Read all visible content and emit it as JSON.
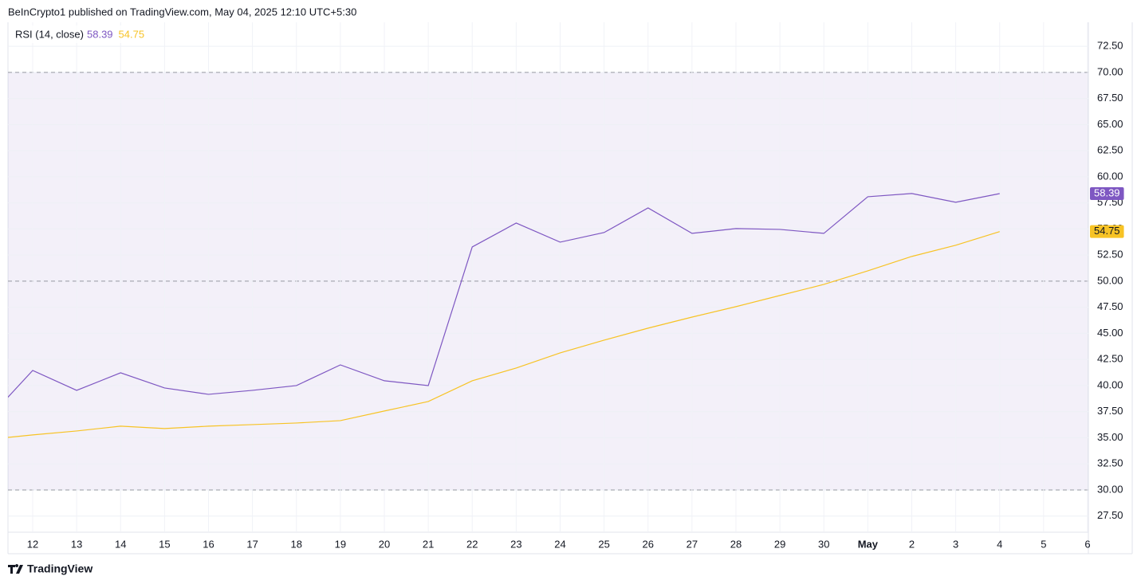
{
  "header": {
    "text": "BeInCrypto1 published on TradingView.com, May 04, 2025 12:10 UTC+5:30"
  },
  "footer": {
    "brand": "TradingView"
  },
  "chart_data": {
    "type": "line",
    "indicator": "RSI (14, close)",
    "categories": [
      null,
      "12",
      "13",
      "14",
      "15",
      "16",
      "17",
      "18",
      "19",
      "20",
      "21",
      "22",
      "23",
      "24",
      "25",
      "26",
      "27",
      "28",
      "29",
      "30",
      "May",
      "2",
      "3",
      "4",
      "5",
      "6"
    ],
    "series": [
      {
        "color": "#7e57c2",
        "values": [
          36.9,
          41.45,
          39.54,
          41.22,
          39.77,
          39.16,
          39.54,
          40.0,
          41.98,
          40.46,
          40.0,
          53.28,
          55.57,
          53.74,
          54.66,
          57.02,
          54.58,
          55.04,
          54.96,
          54.58,
          58.09,
          58.4,
          57.56,
          58.39,
          null,
          null
        ]
      },
      {
        "color": "#f7c325",
        "values": [
          34.85,
          35.27,
          35.65,
          36.11,
          35.88,
          36.11,
          36.26,
          36.41,
          36.64,
          37.56,
          38.47,
          40.46,
          41.68,
          43.13,
          44.35,
          45.5,
          46.56,
          47.56,
          48.63,
          49.69,
          50.99,
          52.37,
          53.44,
          54.75,
          null,
          null
        ]
      }
    ],
    "ylim": [
      25.95,
      74.8
    ],
    "yticks": [
      {
        "value": 27.5,
        "label": "27.50"
      },
      {
        "value": 30,
        "label": "30.00"
      },
      {
        "value": 32.5,
        "label": "32.50"
      },
      {
        "value": 35,
        "label": "35.00"
      },
      {
        "value": 37.5,
        "label": "37.50"
      },
      {
        "value": 40,
        "label": "40.00"
      },
      {
        "value": 42.5,
        "label": "42.50"
      },
      {
        "value": 45,
        "label": "45.00"
      },
      {
        "value": 47.5,
        "label": "47.50"
      },
      {
        "value": 50,
        "label": "50.00"
      },
      {
        "value": 52.5,
        "label": "52.50"
      },
      {
        "value": 55,
        "label": "55.00"
      },
      {
        "value": 57.5,
        "label": "57.50"
      },
      {
        "value": 60,
        "label": "60.00"
      },
      {
        "value": 62.5,
        "label": "62.50"
      },
      {
        "value": 65,
        "label": "65.00"
      },
      {
        "value": 67.5,
        "label": "67.50"
      },
      {
        "value": 70,
        "label": "70.00"
      },
      {
        "value": 72.5,
        "label": "72.50"
      }
    ],
    "band": [
      30,
      70
    ],
    "dashed_levels": [
      30,
      50,
      70
    ],
    "grid": true
  }
}
